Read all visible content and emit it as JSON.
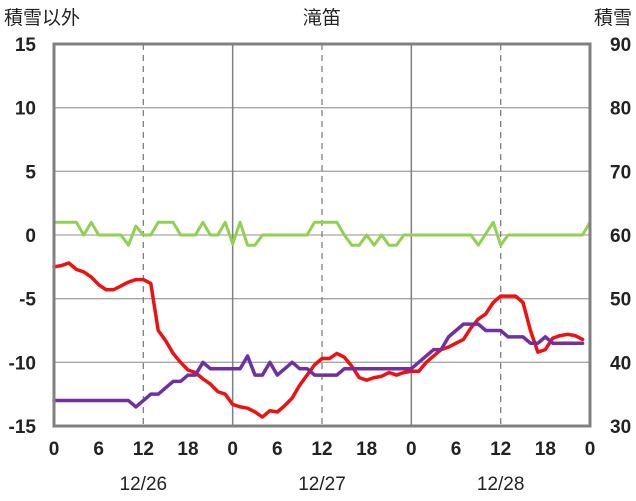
{
  "chart_data": {
    "type": "line",
    "title": "滝笛",
    "left_axis_label": "積雪以外",
    "right_axis_label": "積雪",
    "left_axis": {
      "min": -15,
      "max": 15,
      "ticks": [
        "15",
        "10",
        "5",
        "0",
        "-5",
        "-10",
        "-15"
      ]
    },
    "right_axis": {
      "min": 30,
      "max": 90,
      "ticks": [
        "90",
        "80",
        "70",
        "60",
        "50",
        "40",
        "30"
      ]
    },
    "x_axis": {
      "min": 0,
      "max": 72,
      "tick_labels": [
        "0",
        "6",
        "12",
        "18",
        "0",
        "6",
        "12",
        "18",
        "0",
        "6",
        "12",
        "18",
        "0"
      ],
      "date_labels": [
        {
          "text": "12/26",
          "hour": 12
        },
        {
          "text": "12/27",
          "hour": 36
        },
        {
          "text": "12/28",
          "hour": 60
        }
      ]
    },
    "grid": {
      "solid_hours": [
        24,
        48
      ],
      "dashed_hours": [
        12,
        36,
        60
      ]
    },
    "series": [
      {
        "axis": "left",
        "color": "#ee1111",
        "width": 3.5,
        "points": [
          [
            0,
            -2.5
          ],
          [
            1,
            -2.4
          ],
          [
            2,
            -2.2
          ],
          [
            3,
            -2.7
          ],
          [
            4,
            -2.9
          ],
          [
            5,
            -3.3
          ],
          [
            6,
            -3.9
          ],
          [
            7,
            -4.3
          ],
          [
            8,
            -4.3
          ],
          [
            9,
            -4.0
          ],
          [
            10,
            -3.7
          ],
          [
            11,
            -3.5
          ],
          [
            12,
            -3.5
          ],
          [
            13,
            -3.8
          ],
          [
            14,
            -7.5
          ],
          [
            15,
            -8.3
          ],
          [
            16,
            -9.3
          ],
          [
            17,
            -10.0
          ],
          [
            18,
            -10.6
          ],
          [
            19,
            -10.8
          ],
          [
            20,
            -11.3
          ],
          [
            21,
            -11.7
          ],
          [
            22,
            -12.3
          ],
          [
            23,
            -12.5
          ],
          [
            24,
            -13.3
          ],
          [
            25,
            -13.5
          ],
          [
            26,
            -13.6
          ],
          [
            27,
            -13.9
          ],
          [
            28,
            -14.3
          ],
          [
            29,
            -13.8
          ],
          [
            30,
            -13.9
          ],
          [
            31,
            -13.4
          ],
          [
            32,
            -12.8
          ],
          [
            33,
            -11.8
          ],
          [
            34,
            -11.0
          ],
          [
            35,
            -10.2
          ],
          [
            36,
            -9.7
          ],
          [
            37,
            -9.7
          ],
          [
            38,
            -9.3
          ],
          [
            39,
            -9.6
          ],
          [
            40,
            -10.3
          ],
          [
            41,
            -11.2
          ],
          [
            42,
            -11.4
          ],
          [
            43,
            -11.2
          ],
          [
            44,
            -11.1
          ],
          [
            45,
            -10.8
          ],
          [
            46,
            -11.0
          ],
          [
            47,
            -10.8
          ],
          [
            48,
            -10.7
          ],
          [
            49,
            -10.7
          ],
          [
            50,
            -10.0
          ],
          [
            51,
            -9.5
          ],
          [
            52,
            -9.0
          ],
          [
            53,
            -8.8
          ],
          [
            54,
            -8.5
          ],
          [
            55,
            -8.2
          ],
          [
            56,
            -7.3
          ],
          [
            57,
            -6.6
          ],
          [
            58,
            -6.2
          ],
          [
            59,
            -5.3
          ],
          [
            60,
            -4.8
          ],
          [
            61,
            -4.8
          ],
          [
            62,
            -4.8
          ],
          [
            63,
            -5.3
          ],
          [
            64,
            -7.5
          ],
          [
            65,
            -9.2
          ],
          [
            66,
            -9.0
          ],
          [
            67,
            -8.1
          ],
          [
            68,
            -7.9
          ],
          [
            69,
            -7.8
          ],
          [
            70,
            -7.9
          ],
          [
            71,
            -8.2
          ]
        ]
      },
      {
        "axis": "left",
        "color": "#7030a0",
        "width": 3.5,
        "points": [
          [
            0,
            -13.0
          ],
          [
            10,
            -13.0
          ],
          [
            11,
            -13.5
          ],
          [
            12,
            -13.0
          ],
          [
            13,
            -12.5
          ],
          [
            14,
            -12.5
          ],
          [
            15,
            -12.0
          ],
          [
            16,
            -11.5
          ],
          [
            17,
            -11.5
          ],
          [
            18,
            -11.0
          ],
          [
            19,
            -11.0
          ],
          [
            20,
            -10.0
          ],
          [
            21,
            -10.5
          ],
          [
            22,
            -10.5
          ],
          [
            24,
            -10.5
          ],
          [
            25,
            -10.5
          ],
          [
            26,
            -9.5
          ],
          [
            27,
            -11.0
          ],
          [
            28,
            -11.0
          ],
          [
            29,
            -10.0
          ],
          [
            30,
            -11.0
          ],
          [
            31,
            -10.5
          ],
          [
            32,
            -10.0
          ],
          [
            33,
            -10.5
          ],
          [
            34,
            -10.5
          ],
          [
            35,
            -11.0
          ],
          [
            38,
            -11.0
          ],
          [
            39,
            -10.5
          ],
          [
            48,
            -10.5
          ],
          [
            49,
            -10.0
          ],
          [
            50,
            -9.5
          ],
          [
            51,
            -9.0
          ],
          [
            52,
            -9.0
          ],
          [
            53,
            -8.0
          ],
          [
            54,
            -7.5
          ],
          [
            55,
            -7.0
          ],
          [
            57,
            -7.0
          ],
          [
            58,
            -7.5
          ],
          [
            60,
            -7.5
          ],
          [
            61,
            -8.0
          ],
          [
            63,
            -8.0
          ],
          [
            64,
            -8.5
          ],
          [
            65,
            -8.5
          ],
          [
            66,
            -8.0
          ],
          [
            67,
            -8.5
          ],
          [
            71,
            -8.5
          ]
        ]
      },
      {
        "axis": "left",
        "color": "#92d050",
        "width": 3,
        "points": [
          [
            0,
            1.0
          ],
          [
            3,
            1.0
          ],
          [
            4,
            0.0
          ],
          [
            5,
            1.0
          ],
          [
            6,
            0.0
          ],
          [
            9,
            0.0
          ],
          [
            10,
            -0.8
          ],
          [
            11,
            0.7
          ],
          [
            12,
            0.0
          ],
          [
            13,
            0.0
          ],
          [
            14,
            1.0
          ],
          [
            16,
            1.0
          ],
          [
            17,
            0.0
          ],
          [
            19,
            0.0
          ],
          [
            20,
            1.0
          ],
          [
            21,
            0.0
          ],
          [
            22,
            0.0
          ],
          [
            23,
            1.0
          ],
          [
            24,
            -0.7
          ],
          [
            25,
            1.0
          ],
          [
            26,
            -0.8
          ],
          [
            27,
            -0.8
          ],
          [
            28,
            0.0
          ],
          [
            34,
            0.0
          ],
          [
            35,
            1.0
          ],
          [
            38,
            1.0
          ],
          [
            39,
            0.0
          ],
          [
            40,
            -0.8
          ],
          [
            41,
            -0.8
          ],
          [
            42,
            0.0
          ],
          [
            43,
            -0.8
          ],
          [
            44,
            0.0
          ],
          [
            45,
            -0.8
          ],
          [
            46,
            -0.8
          ],
          [
            47,
            0.0
          ],
          [
            56,
            0.0
          ],
          [
            57,
            -0.8
          ],
          [
            59,
            1.0
          ],
          [
            60,
            -0.8
          ],
          [
            61,
            0.0
          ],
          [
            71,
            0.0
          ],
          [
            72,
            1.0
          ]
        ]
      }
    ]
  }
}
